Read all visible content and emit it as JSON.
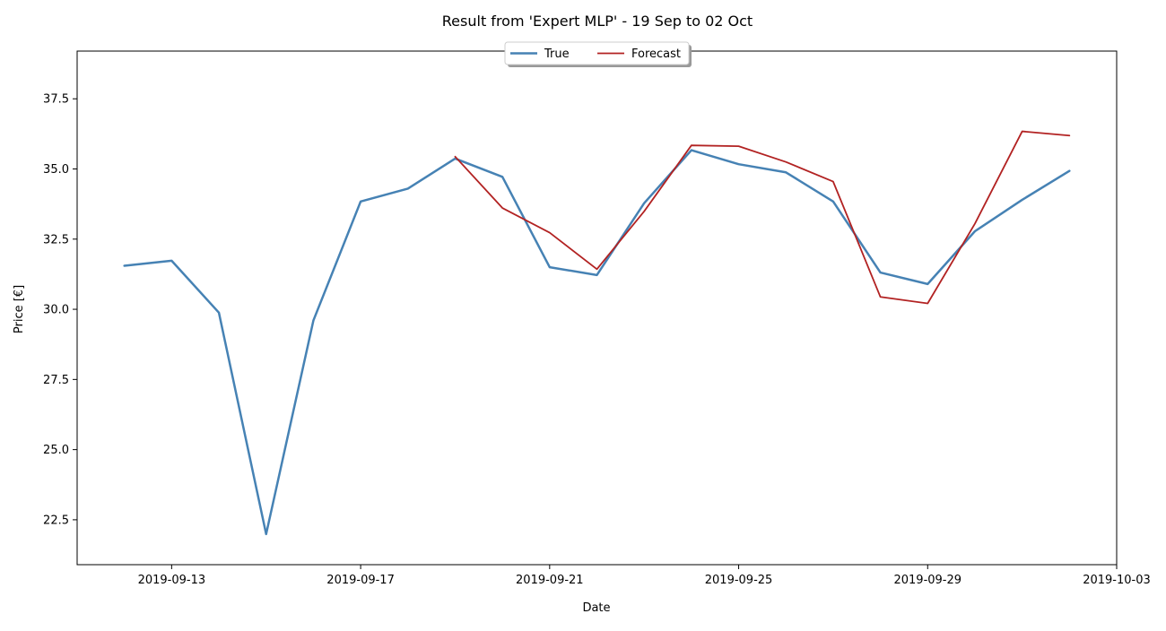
{
  "chart_data": {
    "type": "line",
    "title": "Result from 'Expert MLP' - 19 Sep to 02 Oct",
    "xlabel": "Date",
    "ylabel": "Price [€]",
    "xlim": [
      "2019-09-11",
      "2019-10-03"
    ],
    "ylim": [
      20.9,
      39.2
    ],
    "x_ticks": [
      "2019-09-13",
      "2019-09-17",
      "2019-09-21",
      "2019-09-25",
      "2019-09-29",
      "2019-10-03"
    ],
    "y_ticks": [
      22.5,
      25.0,
      27.5,
      30.0,
      32.5,
      35.0,
      37.5
    ],
    "grid": false,
    "legend_position": "top-center",
    "series": [
      {
        "name": "True",
        "color": "#4682b4",
        "x": [
          "2019-09-12",
          "2019-09-13",
          "2019-09-14",
          "2019-09-15",
          "2019-09-16",
          "2019-09-17",
          "2019-09-18",
          "2019-09-19",
          "2019-09-20",
          "2019-09-21",
          "2019-09-22",
          "2019-09-23",
          "2019-09-24",
          "2019-09-25",
          "2019-09-26",
          "2019-09-27",
          "2019-09-28",
          "2019-09-29",
          "2019-09-30",
          "2019-10-01",
          "2019-10-02"
        ],
        "values": [
          31.55,
          31.73,
          29.88,
          21.99,
          29.6,
          33.84,
          34.3,
          35.37,
          34.72,
          31.5,
          31.22,
          33.78,
          35.67,
          35.17,
          34.88,
          33.84,
          31.31,
          30.9,
          32.78,
          33.9,
          34.93
        ]
      },
      {
        "name": "Forecast",
        "color": "#b22222",
        "x": [
          "2019-09-19",
          "2019-09-20",
          "2019-09-21",
          "2019-09-22",
          "2019-09-23",
          "2019-09-24",
          "2019-09-25",
          "2019-09-26",
          "2019-09-27",
          "2019-09-28",
          "2019-09-29",
          "2019-09-30",
          "2019-10-01",
          "2019-10-02"
        ],
        "values": [
          35.44,
          33.61,
          32.73,
          31.43,
          33.49,
          35.84,
          35.81,
          35.25,
          34.55,
          30.44,
          30.21,
          33.05,
          36.34,
          36.19
        ]
      }
    ]
  }
}
